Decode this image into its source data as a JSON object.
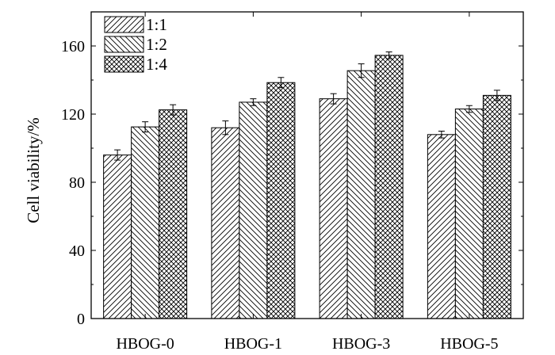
{
  "chart_data": {
    "type": "bar",
    "categories": [
      "HBOG-0",
      "HBOG-1",
      "HBOG-3",
      "HBOG-5"
    ],
    "series": [
      {
        "name": "1:1",
        "values": [
          96,
          112,
          129,
          108
        ],
        "errors": [
          3,
          4,
          3,
          2
        ],
        "pattern": "diag-up"
      },
      {
        "name": "1:2",
        "values": [
          112.5,
          127,
          145.5,
          123
        ],
        "errors": [
          3,
          2,
          4,
          2
        ],
        "pattern": "diag-down"
      },
      {
        "name": "1:4",
        "values": [
          122.5,
          138.5,
          154.5,
          131
        ],
        "errors": [
          3,
          3,
          2,
          3
        ],
        "pattern": "cross"
      }
    ],
    "title": "",
    "xlabel": "",
    "ylabel": "Cell viability/%",
    "ylim": [
      0,
      180
    ],
    "yticks": [
      0,
      40,
      80,
      120,
      160
    ],
    "grid": false,
    "legend_position": "top-left"
  }
}
